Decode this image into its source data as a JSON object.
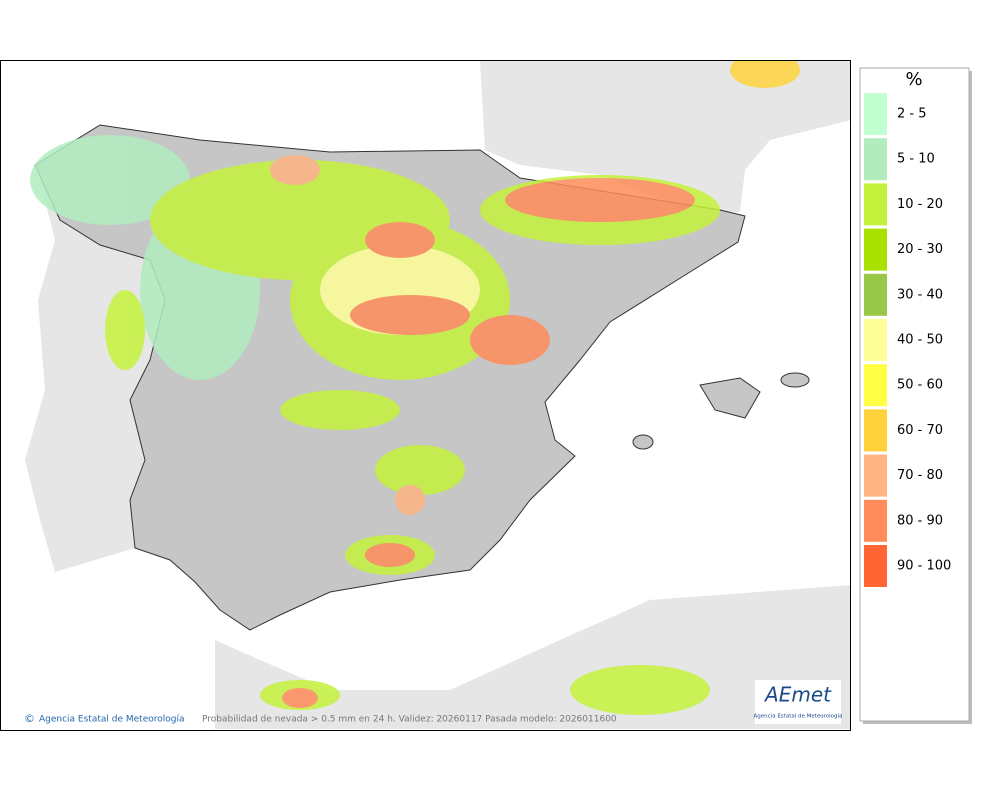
{
  "legend": {
    "title": "%",
    "items": [
      {
        "label": "2 - 5",
        "color": "#c2ffd0"
      },
      {
        "label": "5 - 10",
        "color": "#b2ecbe"
      },
      {
        "label": "10 - 20",
        "color": "#c4f23c"
      },
      {
        "label": "20 - 30",
        "color": "#a8e000"
      },
      {
        "label": "30 - 40",
        "color": "#99c848"
      },
      {
        "label": "40 - 50",
        "color": "#ffff99"
      },
      {
        "label": "50 - 60",
        "color": "#ffff44"
      },
      {
        "label": "60 - 70",
        "color": "#ffd23c"
      },
      {
        "label": "70 - 80",
        "color": "#ffb482"
      },
      {
        "label": "80 - 90",
        "color": "#ff8c5a"
      },
      {
        "label": "90 - 100",
        "color": "#ff6633"
      }
    ]
  },
  "footer": {
    "agency": "Agencia Estatal de Meteorología",
    "caption": "Probabilidad de nevada > 0.5 mm en 24 h. Validez: 20260117 Pasada modelo: 2026011600"
  },
  "logo": {
    "name": "AEmet",
    "subtitle": "Agencia Estatal de Meteorología"
  }
}
